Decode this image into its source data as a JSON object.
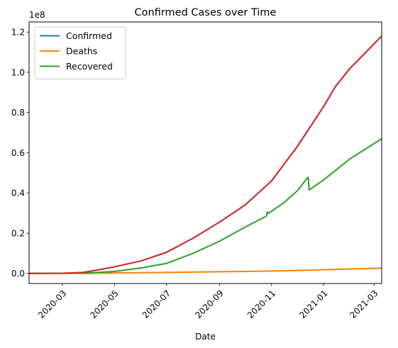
{
  "chart_data": {
    "type": "line",
    "title": "Confirmed Cases over Time",
    "xlabel": "Date",
    "ylabel": "",
    "y_multiplier_label": "1e8",
    "xlim": [
      "2020-01-22",
      "2021-03-10"
    ],
    "ylim": [
      -5000000,
      125000000
    ],
    "x_ticks": [
      "2020-03",
      "2020-05",
      "2020-07",
      "2020-09",
      "2020-11",
      "2021-01",
      "2021-03"
    ],
    "x_tick_dates": [
      "2020-03-01",
      "2020-05-01",
      "2020-07-01",
      "2020-09-01",
      "2020-11-01",
      "2021-01-01",
      "2021-03-01"
    ],
    "y_ticks": [
      0.0,
      0.2,
      0.4,
      0.6,
      0.8,
      1.0,
      1.2
    ],
    "y_tick_labels": [
      "0.0",
      "0.2",
      "0.4",
      "0.6",
      "0.8",
      "1.0",
      "1.2"
    ],
    "legend_position": "upper-left",
    "series": [
      {
        "name": "Confirmed",
        "color": "#1f77b4",
        "x": [
          "2020-01-22",
          "2020-03-01",
          "2020-03-25",
          "2020-04-15",
          "2020-05-01",
          "2020-06-01",
          "2020-07-01",
          "2020-08-01",
          "2020-09-01",
          "2020-10-01",
          "2020-11-01",
          "2020-12-01",
          "2020-12-15",
          "2021-01-01",
          "2021-01-15",
          "2021-02-01",
          "2021-02-15",
          "2021-03-10"
        ],
        "values": [
          600,
          90000,
          470000,
          2000000,
          3300000,
          6200000,
          10500000,
          17500000,
          25500000,
          34000000,
          46000000,
          63000000,
          72000000,
          83000000,
          93000000,
          102000000,
          108000000,
          118000000
        ]
      },
      {
        "name": "Deaths",
        "color": "#ff7f0e",
        "x": [
          "2020-01-22",
          "2020-03-01",
          "2020-04-01",
          "2020-05-01",
          "2020-06-01",
          "2020-07-01",
          "2020-08-01",
          "2020-09-01",
          "2020-10-01",
          "2020-11-01",
          "2020-12-01",
          "2021-01-01",
          "2021-02-01",
          "2021-03-10"
        ],
        "values": [
          17,
          3000,
          50000,
          230000,
          370000,
          510000,
          680000,
          850000,
          1000000,
          1200000,
          1460000,
          1810000,
          2200000,
          2600000
        ]
      },
      {
        "name": "Recovered",
        "color": "#2ca02c",
        "x": [
          "2020-01-22",
          "2020-03-01",
          "2020-04-01",
          "2020-05-01",
          "2020-06-01",
          "2020-07-01",
          "2020-08-01",
          "2020-09-01",
          "2020-10-01",
          "2020-10-26",
          "2020-10-27",
          "2020-10-28",
          "2020-11-15",
          "2020-12-01",
          "2020-12-13",
          "2020-12-14",
          "2020-12-15",
          "2021-01-01",
          "2021-02-01",
          "2021-03-10"
        ],
        "values": [
          30,
          45000,
          250000,
          1000000,
          2700000,
          5000000,
          10000000,
          16000000,
          23000000,
          28500000,
          30500000,
          29800000,
          35000000,
          41000000,
          47500000,
          47800000,
          41500000,
          46500000,
          57000000,
          67000000
        ]
      },
      {
        "name": "",
        "color": "#d62728",
        "x": [
          "2020-01-22",
          "2020-03-01",
          "2020-03-25",
          "2020-04-15",
          "2020-05-01",
          "2020-06-01",
          "2020-07-01",
          "2020-08-01",
          "2020-09-01",
          "2020-10-01",
          "2020-11-01",
          "2020-12-01",
          "2020-12-15",
          "2021-01-01",
          "2021-01-15",
          "2021-02-01",
          "2021-02-15",
          "2021-03-10"
        ],
        "values": [
          600,
          90000,
          470000,
          2000000,
          3300000,
          6200000,
          10500000,
          17500000,
          25500000,
          34000000,
          46000000,
          63000000,
          72000000,
          83000000,
          93000000,
          102000000,
          108000000,
          118000000
        ]
      }
    ]
  }
}
